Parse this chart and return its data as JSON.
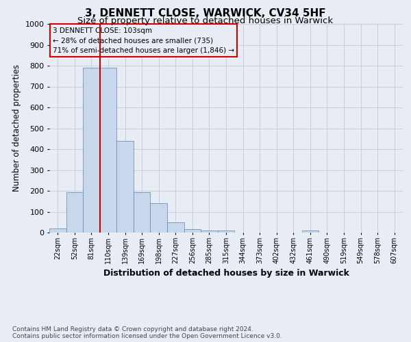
{
  "title": "3, DENNETT CLOSE, WARWICK, CV34 5HF",
  "subtitle": "Size of property relative to detached houses in Warwick",
  "xlabel": "Distribution of detached houses by size in Warwick",
  "ylabel": "Number of detached properties",
  "footnote": "Contains HM Land Registry data © Crown copyright and database right 2024.\nContains public sector information licensed under the Open Government Licence v3.0.",
  "bar_color": "#c8d8ec",
  "bar_edge_color": "#7090b8",
  "grid_color": "#c0cad8",
  "bg_color": "#e8edf5",
  "property_line_color": "#cc0000",
  "annotation_box_color": "#cc0000",
  "categories": [
    "22sqm",
    "52sqm",
    "81sqm",
    "110sqm",
    "139sqm",
    "169sqm",
    "198sqm",
    "227sqm",
    "256sqm",
    "285sqm",
    "315sqm",
    "344sqm",
    "373sqm",
    "402sqm",
    "432sqm",
    "461sqm",
    "490sqm",
    "519sqm",
    "549sqm",
    "578sqm",
    "607sqm"
  ],
  "values": [
    20,
    195,
    790,
    790,
    440,
    195,
    140,
    50,
    15,
    10,
    10,
    0,
    0,
    0,
    0,
    10,
    0,
    0,
    0,
    0,
    0
  ],
  "property_bin_index": 3,
  "ylim": [
    0,
    1000
  ],
  "yticks": [
    0,
    100,
    200,
    300,
    400,
    500,
    600,
    700,
    800,
    900,
    1000
  ],
  "annotation_text": "3 DENNETT CLOSE: 103sqm\n← 28% of detached houses are smaller (735)\n71% of semi-detached houses are larger (1,846) →",
  "title_fontsize": 11,
  "subtitle_fontsize": 9.5,
  "ylabel_fontsize": 8.5,
  "xlabel_fontsize": 9,
  "tick_fontsize": 7,
  "annotation_fontsize": 7.5,
  "footnote_fontsize": 6.5
}
